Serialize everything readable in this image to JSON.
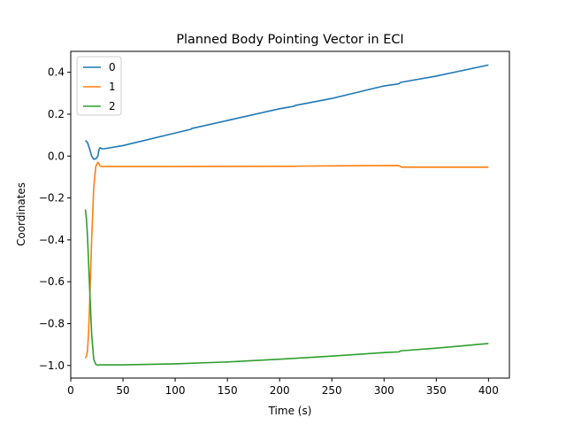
{
  "chart_data": {
    "type": "line",
    "title": "Planned Body Pointing Vector in ECI",
    "xlabel": "Time (s)",
    "ylabel": "Coordinates",
    "xlim": [
      0,
      420
    ],
    "ylim": [
      -1.06,
      0.5
    ],
    "xticks": [
      0,
      50,
      100,
      150,
      200,
      250,
      300,
      350,
      400
    ],
    "yticks": [
      -1.0,
      -0.8,
      -0.6,
      -0.4,
      -0.2,
      0.0,
      0.2,
      0.4
    ],
    "xtick_labels": [
      "0",
      "50",
      "100",
      "150",
      "200",
      "250",
      "300",
      "350",
      "400"
    ],
    "ytick_labels": [
      "−1.0",
      "−0.8",
      "−0.6",
      "−0.4",
      "−0.2",
      "0.0",
      "0.2",
      "0.4"
    ],
    "legend_position": "top-left",
    "grid": false,
    "series": [
      {
        "name": "0",
        "color": "#1f77b4",
        "x": [
          14,
          16,
          18,
          20,
          22,
          24,
          26,
          27,
          28,
          30,
          32,
          50,
          100,
          115,
          116,
          150,
          200,
          214,
          215,
          250,
          300,
          314,
          316,
          350,
          400
        ],
        "y": [
          0.075,
          0.065,
          0.035,
          0.0,
          -0.015,
          -0.013,
          0.0,
          0.03,
          0.04,
          0.035,
          0.035,
          0.05,
          0.11,
          0.128,
          0.132,
          0.17,
          0.226,
          0.238,
          0.242,
          0.275,
          0.335,
          0.345,
          0.352,
          0.382,
          0.435
        ]
      },
      {
        "name": "1",
        "color": "#ff7f0e",
        "x": [
          14,
          15,
          16,
          17,
          18,
          20,
          22,
          24,
          26,
          27,
          28,
          30,
          50,
          100,
          200,
          215,
          216,
          314,
          316,
          317,
          400
        ],
        "y": [
          -0.965,
          -0.955,
          -0.93,
          -0.85,
          -0.72,
          -0.4,
          -0.15,
          -0.05,
          -0.03,
          -0.035,
          -0.048,
          -0.05,
          -0.05,
          -0.05,
          -0.049,
          -0.049,
          -0.048,
          -0.045,
          -0.05,
          -0.053,
          -0.053
        ]
      },
      {
        "name": "2",
        "color": "#2ca02c",
        "x": [
          14,
          15,
          16,
          17,
          18,
          20,
          22,
          24,
          26,
          28,
          30,
          50,
          100,
          150,
          200,
          250,
          300,
          314,
          316,
          350,
          400
        ],
        "y": [
          -0.255,
          -0.3,
          -0.38,
          -0.5,
          -0.62,
          -0.85,
          -0.97,
          -0.995,
          -0.998,
          -0.997,
          -0.997,
          -0.997,
          -0.992,
          -0.983,
          -0.97,
          -0.955,
          -0.938,
          -0.935,
          -0.93,
          -0.917,
          -0.895
        ]
      }
    ]
  }
}
